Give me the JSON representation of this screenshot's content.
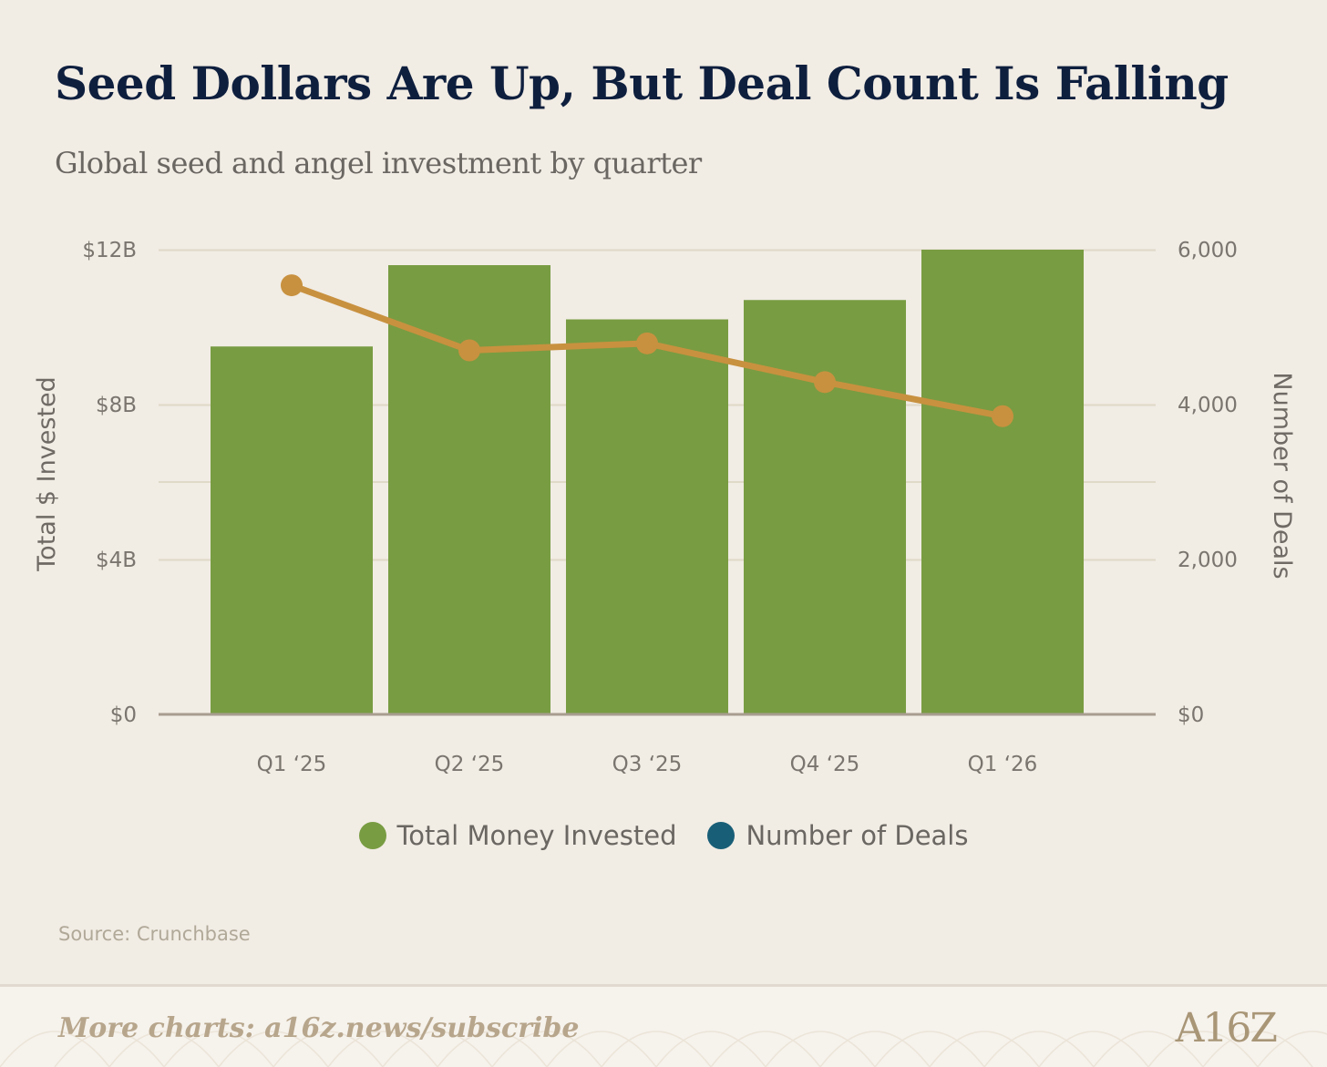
{
  "title": "Seed Dollars Are Up, But Deal Count Is Falling",
  "subtitle": "Global seed and angel investment by quarter",
  "source": "Source: Crunchbase",
  "footer": {
    "link_text": "More charts: a16z.news/subscribe",
    "logo_text": "A16Z"
  },
  "colors": {
    "bars": "#789c42",
    "line": "#c8913f",
    "deals_legend": "#185e77",
    "axis": "#a89d90",
    "grid": "#dfd9c8"
  },
  "chart_data": {
    "type": "bar+line",
    "title": "Seed Dollars Are Up, But Deal Count Is Falling",
    "subtitle": "Global seed and angel investment by quarter",
    "categories": [
      "Q1 ‘25",
      "Q2 ‘25",
      "Q3 ‘25",
      "Q4 ‘25",
      "Q1 ‘26"
    ],
    "series": [
      {
        "name": "Total Money Invested",
        "type": "bar",
        "axis": "left",
        "unit": "$B",
        "values": [
          9.5,
          11.6,
          10.2,
          10.7,
          12.0
        ]
      },
      {
        "name": "Number of Deals",
        "type": "line",
        "axis": "right",
        "values": [
          5540,
          4700,
          4790,
          4290,
          3850
        ]
      }
    ],
    "y_left": {
      "label": "Total $ Invested",
      "range": [
        0,
        12
      ],
      "ticks": [
        0,
        4,
        8,
        12
      ],
      "tick_labels": [
        "$0",
        "$4B",
        "$8B",
        "$12B"
      ]
    },
    "y_right": {
      "label": "Number of Deals",
      "range": [
        0,
        6000
      ],
      "ticks": [
        0,
        2000,
        4000,
        6000
      ],
      "tick_labels": [
        "$0",
        "2,000",
        "4,000",
        "6,000"
      ]
    },
    "legend": [
      "Total Money Invested",
      "Number of Deals"
    ],
    "legend_position": "bottom-center"
  }
}
